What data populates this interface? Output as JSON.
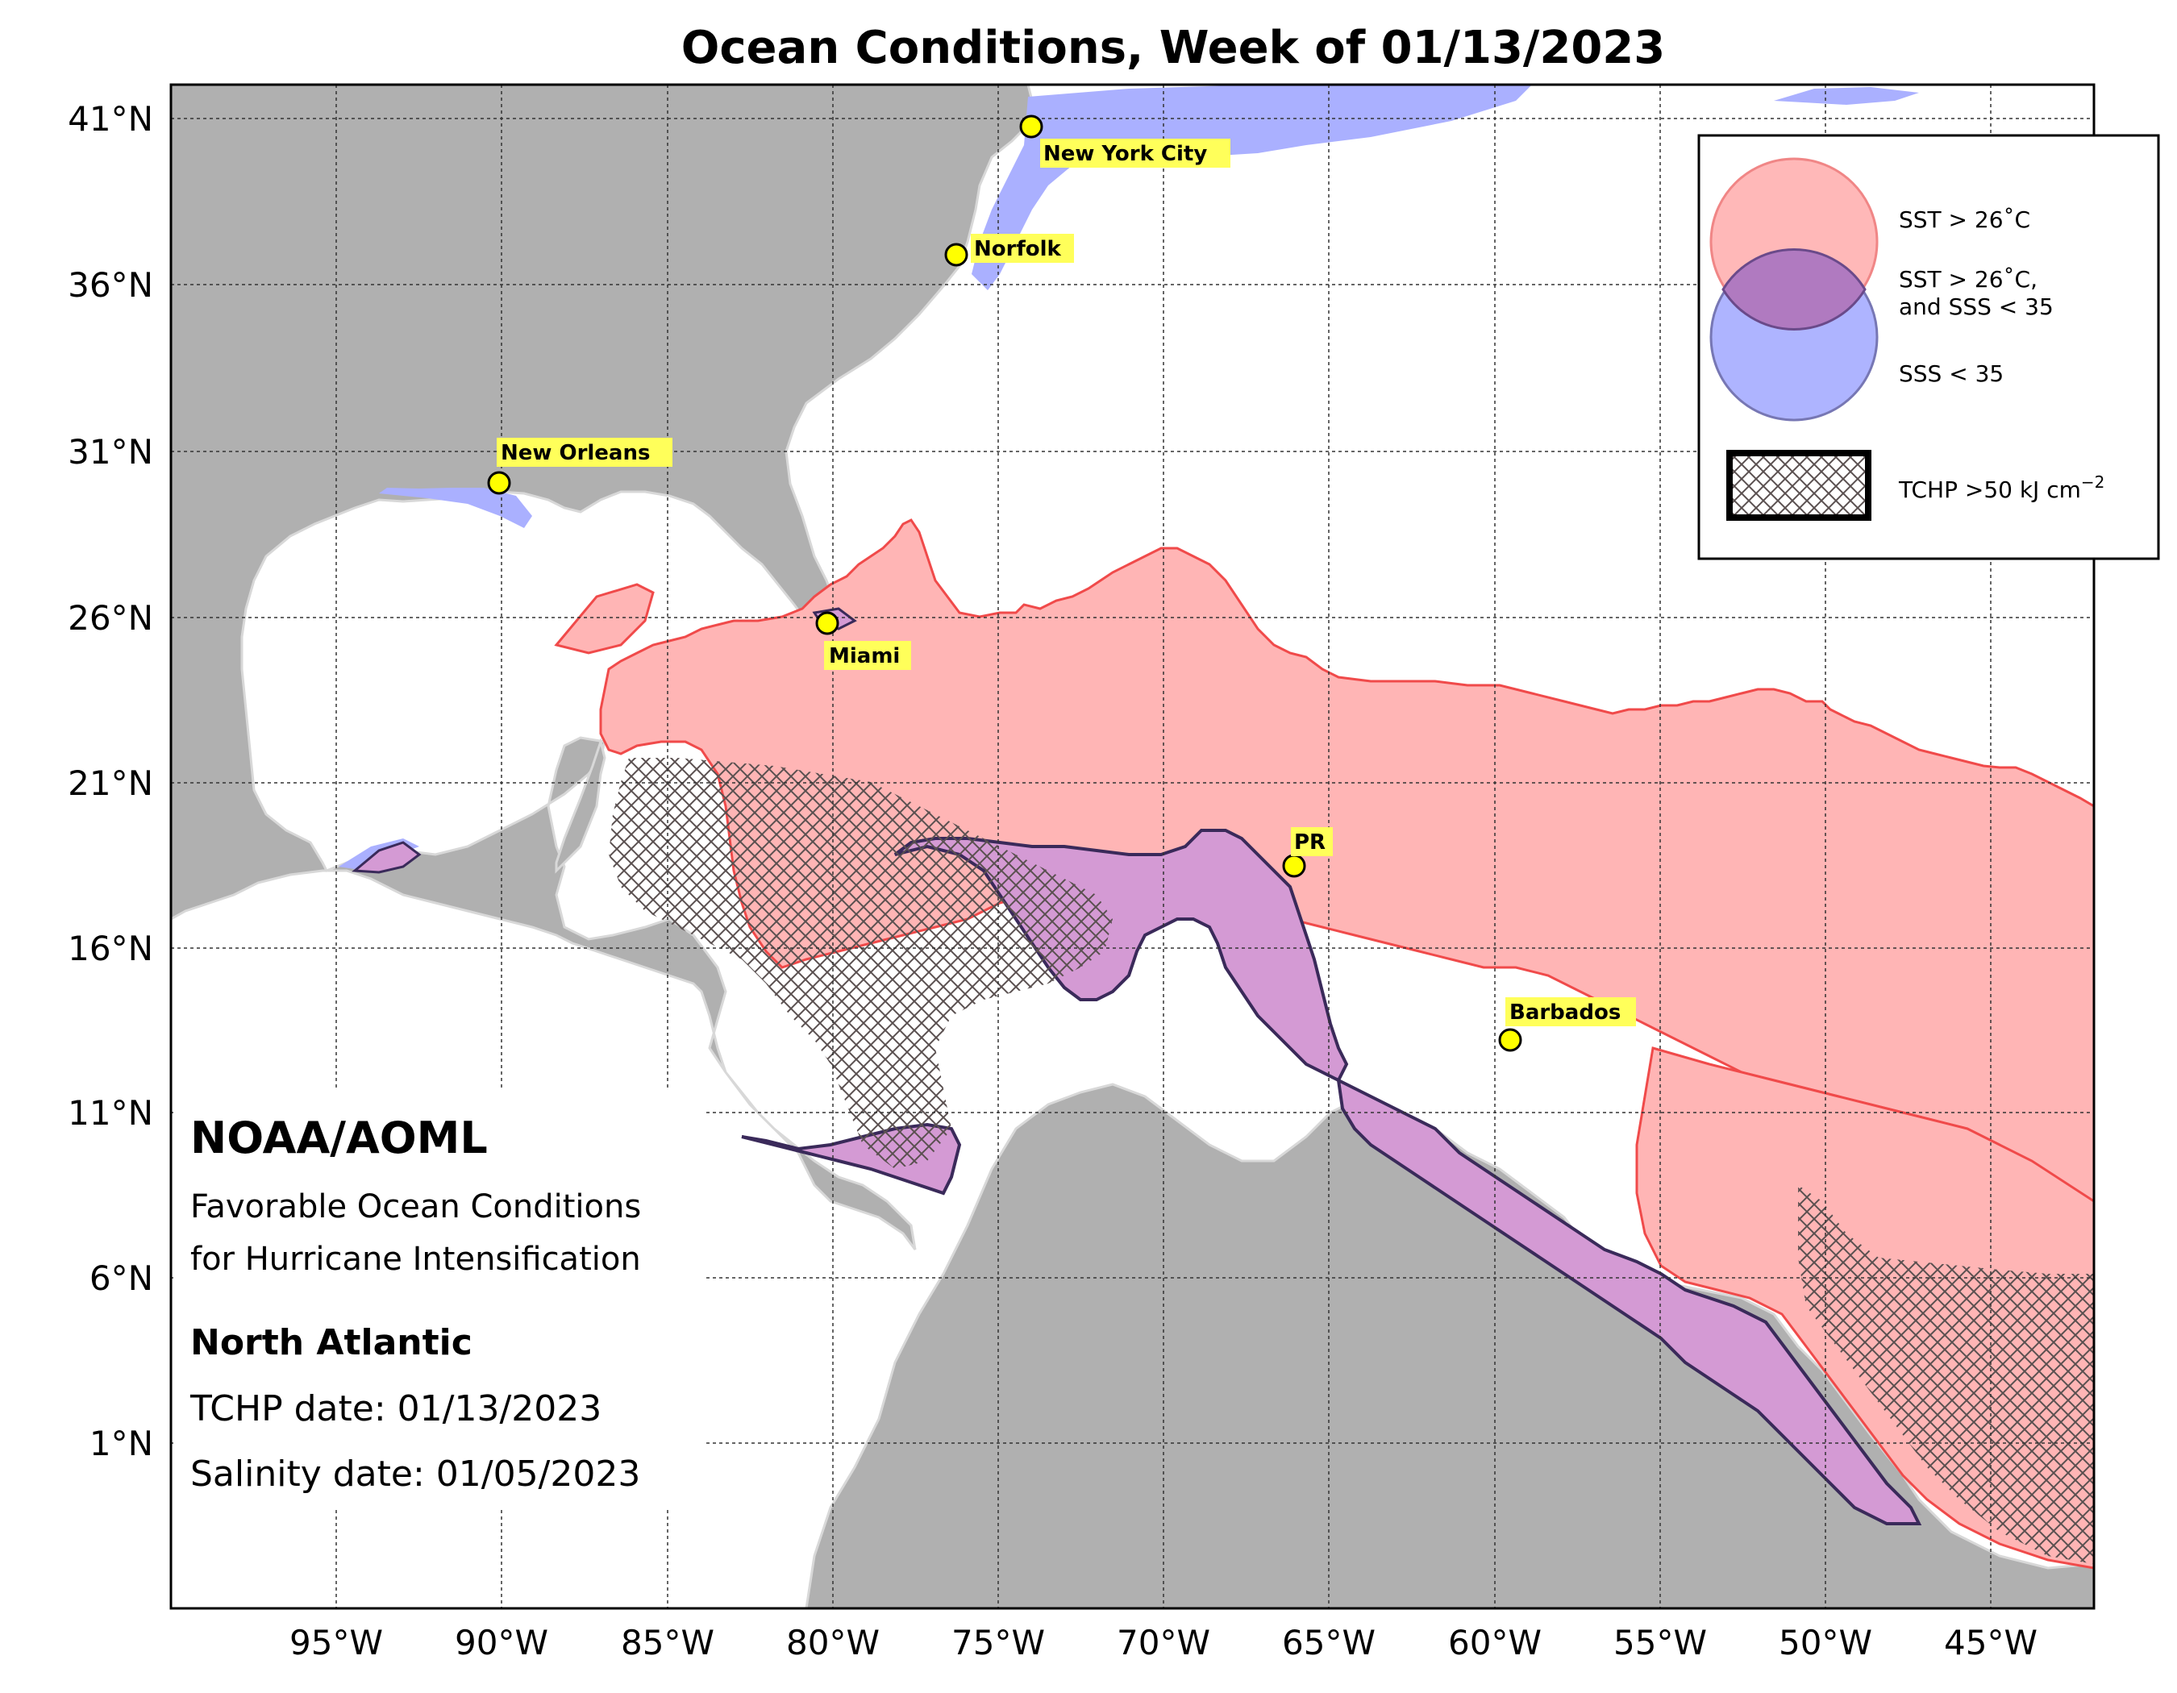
{
  "title": "Ocean Conditions, Week of 01/13/2023",
  "lat_labels": [
    "41°N",
    "36°N",
    "31°N",
    "26°N",
    "21°N",
    "16°N",
    "11°N",
    "6°N",
    "1°N"
  ],
  "lon_labels": [
    "95°W",
    "90°W",
    "85°W",
    "80°W",
    "75°W",
    "70°W",
    "65°W",
    "60°W",
    "55°W",
    "50°W",
    "45°W"
  ],
  "cities": [
    {
      "name": "New York City"
    },
    {
      "name": "Norfolk"
    },
    {
      "name": "New Orleans"
    },
    {
      "name": "Miami"
    },
    {
      "name": "PR"
    },
    {
      "name": "Barbados"
    }
  ],
  "legend": {
    "sst": "SST > 26˚C",
    "both_line1": "SST > 26˚C,",
    "both_line2": "and SSS < 35",
    "sss": "SSS < 35",
    "tchp": "TCHP >50 kJ cm",
    "tchp_exp": "−2"
  },
  "info": {
    "org": "NOAA/AOML",
    "subtitle1": "Favorable Ocean Conditions",
    "subtitle2": "for Hurricane Intensification",
    "region": "North Atlantic",
    "tchp_date": "TCHP date: 01/13/2023",
    "salinity_date": "Salinity date: 01/05/2023"
  },
  "colors": {
    "land": "#b0b0b0",
    "ocean": "#ffffff",
    "sst": "#ffb5b5",
    "sst_edge": "#f04a4a",
    "sss": "#aab0ff",
    "both": "#d49ad4",
    "both_edge": "#3a2a5a",
    "city_marker": "#ffff00",
    "city_label_bg": "#ffff5a"
  }
}
